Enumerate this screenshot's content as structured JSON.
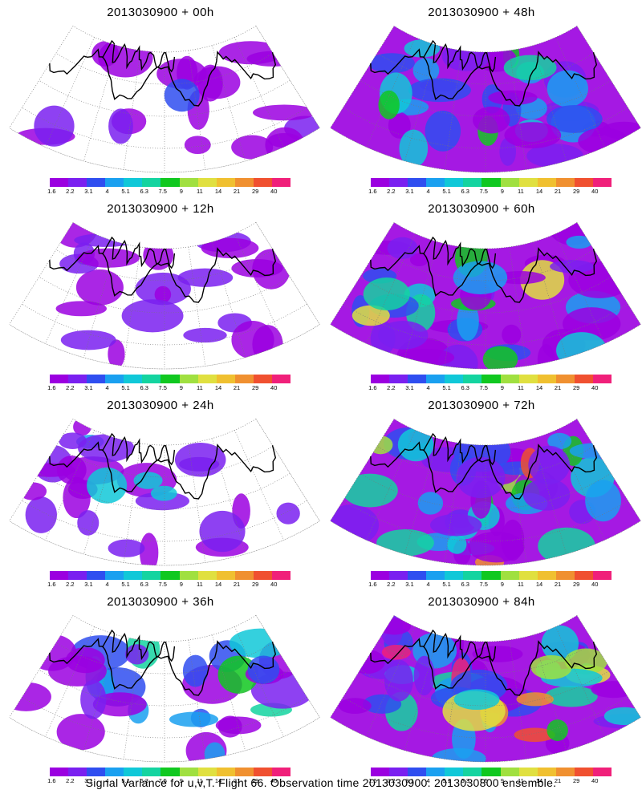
{
  "panels": [
    {
      "title": "2013030900 + 00h"
    },
    {
      "title": "2013030900 + 48h"
    },
    {
      "title": "2013030900 + 12h"
    },
    {
      "title": "2013030900 + 60h"
    },
    {
      "title": "2013030900 + 24h"
    },
    {
      "title": "2013030900 + 72h"
    },
    {
      "title": "2013030900 + 36h"
    },
    {
      "title": "2013030900 + 84h"
    }
  ],
  "colorbar": {
    "colors": [
      "#9b00e0",
      "#7a20f0",
      "#2f4ef0",
      "#1aa0f0",
      "#10c8d8",
      "#14d4a0",
      "#10c820",
      "#a0e040",
      "#e0e040",
      "#f0c030",
      "#f09030",
      "#f05030",
      "#f0207a"
    ],
    "labels": [
      "1.6",
      "2.2",
      "3.1",
      "4",
      "5.1",
      "6.3",
      "7.5",
      "9",
      "11",
      "14",
      "21",
      "29",
      "40"
    ]
  },
  "caption": "Signal Variance for u,v,T. Flight 66. Observation time 2013030900. 2013030800 ensemble."
}
